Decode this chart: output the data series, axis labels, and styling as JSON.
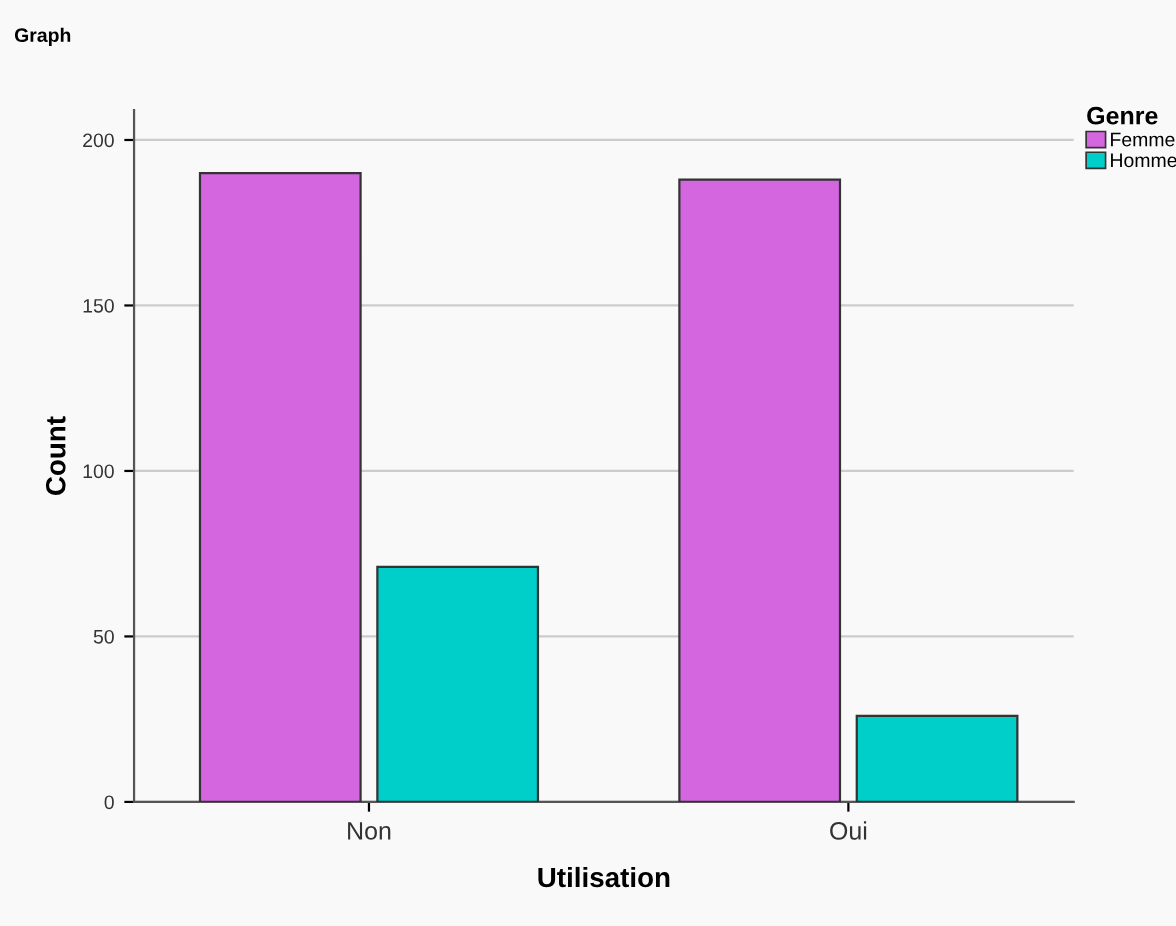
{
  "chart_data": {
    "type": "bar",
    "title": "Graph",
    "xlabel": "Utilisation",
    "ylabel": "Count",
    "legend_title": "Genre",
    "categories": [
      "Non",
      "Oui"
    ],
    "series": [
      {
        "name": "Femme",
        "color": "#d467e0",
        "values": [
          190,
          188
        ]
      },
      {
        "name": "Homme",
        "color": "#00cfc9",
        "values": [
          71,
          26
        ]
      }
    ],
    "ylim": [
      0,
      209
    ],
    "yticks": [
      0,
      50,
      100,
      150,
      200
    ],
    "grid": "y",
    "legend": "top right"
  }
}
